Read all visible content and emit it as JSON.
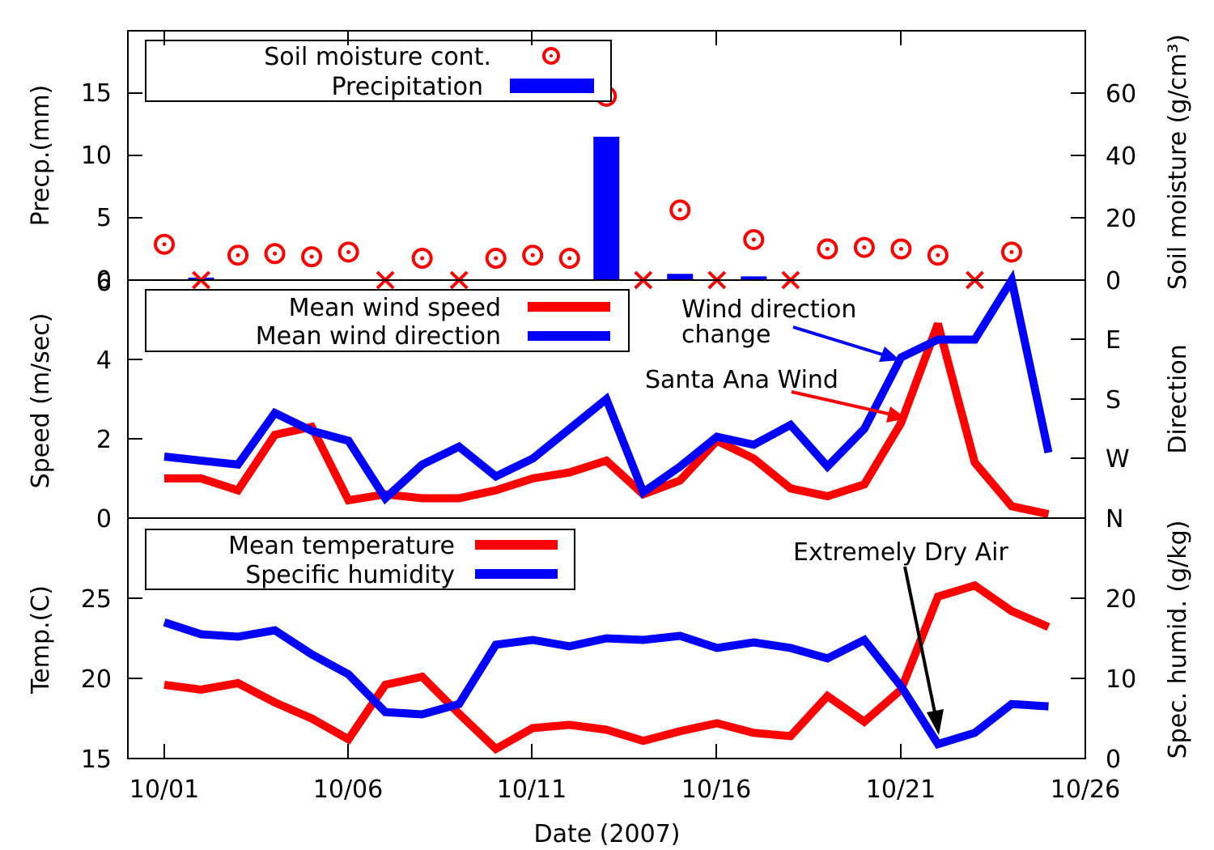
{
  "chart_data": [
    {
      "type": "bar",
      "panel": "top",
      "ylabel": "Precp.(mm)",
      "y2label": "Soil moisture (g/cm³)",
      "ylim": [
        0,
        20
      ],
      "y2lim": [
        0,
        80
      ],
      "yticks": [
        "0",
        "5",
        "10",
        "15"
      ],
      "y2ticks": [
        "0",
        "20",
        "40",
        "60"
      ],
      "legend_placement": "top-left",
      "series": [
        {
          "name": "Soil moisture cont.",
          "color": "#ff0000",
          "marker": "ring-dot",
          "missing_marker": "x",
          "x": [
            1,
            2,
            3,
            4,
            5,
            6,
            7,
            8,
            9,
            10,
            11,
            12,
            13,
            14,
            15,
            16,
            17,
            18,
            19,
            20,
            21,
            22,
            23,
            24
          ],
          "values": [
            11.5,
            null,
            8,
            8.5,
            7.5,
            9,
            null,
            7,
            null,
            7,
            8,
            7,
            59,
            null,
            22.5,
            null,
            13,
            null,
            10,
            10.5,
            10,
            8,
            null,
            9
          ]
        },
        {
          "name": "Precipitation",
          "color": "#0000ff",
          "x": [
            2,
            13,
            15,
            17
          ],
          "values": [
            0.2,
            11.5,
            0.5,
            0.3
          ]
        }
      ]
    },
    {
      "type": "line",
      "panel": "middle",
      "ylabel": "Speed (m/sec)",
      "y2label": "Direction",
      "ylim": [
        0,
        6
      ],
      "yticks": [
        "0",
        "2",
        "4",
        "6"
      ],
      "y2ticks": [
        "N",
        "W",
        "S",
        "E"
      ],
      "legend_placement": "top-left",
      "series": [
        {
          "name": "Mean wind speed",
          "color": "#ff0000",
          "x": [
            1,
            2,
            3,
            4,
            5,
            6,
            7,
            8,
            9,
            10,
            11,
            12,
            13,
            14,
            15,
            16,
            17,
            18,
            19,
            20,
            21,
            22,
            23,
            24,
            25
          ],
          "values": [
            1.0,
            1.0,
            0.7,
            2.1,
            2.3,
            0.45,
            0.6,
            0.5,
            0.5,
            0.7,
            1.0,
            1.15,
            1.45,
            0.6,
            0.95,
            1.95,
            1.5,
            0.75,
            0.55,
            0.85,
            2.4,
            4.9,
            1.4,
            0.3,
            0.1
          ]
        },
        {
          "name": "Mean wind direction",
          "color": "#0000ff",
          "x": [
            1,
            2,
            3,
            4,
            5,
            6,
            7,
            8,
            9,
            10,
            11,
            12,
            13,
            14,
            15,
            16,
            17,
            18,
            19,
            20,
            21,
            22,
            23,
            24,
            25
          ],
          "values": [
            1.55,
            1.45,
            1.35,
            2.65,
            2.2,
            1.95,
            0.5,
            1.35,
            1.8,
            1.05,
            1.5,
            2.25,
            3.0,
            0.65,
            1.3,
            2.05,
            1.85,
            2.35,
            1.3,
            2.25,
            4.05,
            4.5,
            4.5,
            6.0,
            1.65
          ]
        }
      ],
      "annotations": [
        {
          "text_lines": [
            "Wind direction",
            "change"
          ],
          "color": "#0000ff"
        },
        {
          "text_lines": [
            "Santa Ana Wind"
          ],
          "color": "#ff0000"
        }
      ]
    },
    {
      "type": "line",
      "panel": "bottom",
      "ylabel": "Temp.(C)",
      "y2label": "Spec. humid. (g/kg)",
      "xlabel": "Date (2007)",
      "ylim": [
        15,
        30
      ],
      "y2lim": [
        0,
        30
      ],
      "yticks": [
        "15",
        "20",
        "25"
      ],
      "y2ticks": [
        "0",
        "10",
        "20"
      ],
      "xlim": [
        0,
        25
      ],
      "xticks": [
        "10/01",
        "10/06",
        "10/11",
        "10/16",
        "10/21",
        "10/26"
      ],
      "legend_placement": "top-left",
      "series": [
        {
          "name": "Mean temperature",
          "color": "#ff0000",
          "x": [
            1,
            2,
            3,
            4,
            5,
            6,
            7,
            8,
            9,
            10,
            11,
            12,
            13,
            14,
            15,
            16,
            17,
            18,
            19,
            20,
            21,
            22,
            23,
            24,
            25
          ],
          "values": [
            19.6,
            19.3,
            19.7,
            18.5,
            17.5,
            16.2,
            19.6,
            20.1,
            17.8,
            15.6,
            16.9,
            17.1,
            16.8,
            16.1,
            16.7,
            17.2,
            16.6,
            16.4,
            18.9,
            17.3,
            19.3,
            25.1,
            25.8,
            24.2,
            23.2
          ]
        },
        {
          "name": "Specific humidity",
          "color": "#0000ff",
          "x": [
            1,
            2,
            3,
            4,
            5,
            6,
            7,
            8,
            9,
            10,
            11,
            12,
            13,
            14,
            15,
            16,
            17,
            18,
            19,
            20,
            21,
            22,
            23,
            24,
            25
          ],
          "values": [
            17,
            15.5,
            15.2,
            16,
            13,
            10.5,
            5.8,
            5.5,
            6.8,
            14.2,
            14.8,
            14,
            15,
            14.8,
            15.3,
            13.8,
            14.5,
            13.8,
            12.5,
            14.8,
            9,
            1.8,
            3.2,
            6.8,
            6.5
          ]
        }
      ],
      "annotations": [
        {
          "text_lines": [
            "Extremely Dry Air"
          ],
          "color": "#000000"
        }
      ]
    }
  ]
}
